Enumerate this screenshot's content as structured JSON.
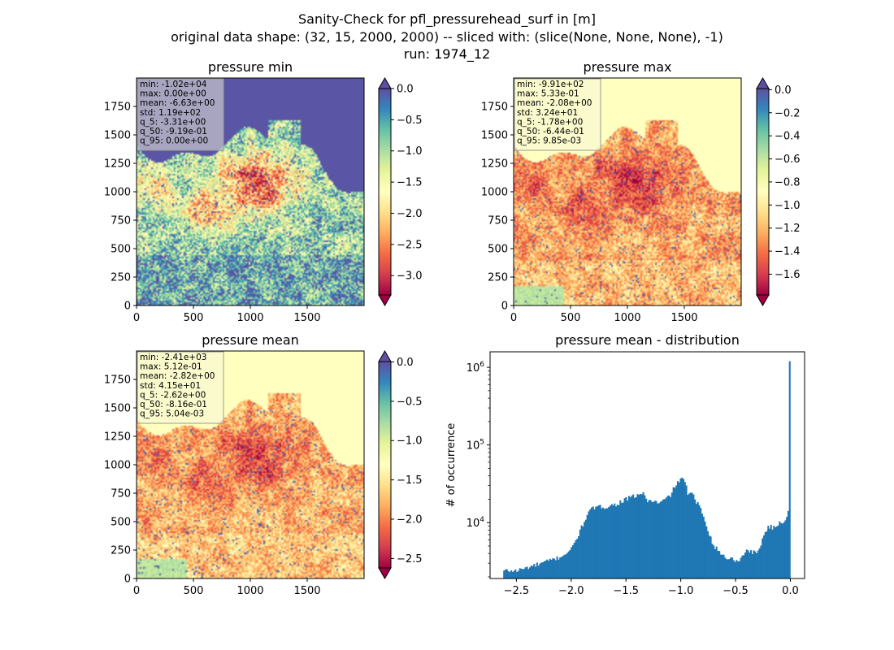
{
  "figure": {
    "title_lines": [
      "Sanity-Check for pfl_pressurehead_surf in [m]",
      "original data shape: (32, 15, 2000, 2000) -- sliced with: (slice(None, None, None), -1)",
      "run: 1974_12"
    ]
  },
  "colors": {
    "spectral": [
      "#9e0142",
      "#d53e4f",
      "#f46d43",
      "#fdae61",
      "#fee08b",
      "#ffffbf",
      "#e6f598",
      "#abdda4",
      "#66c2a5",
      "#3288bd",
      "#5e4fa2"
    ],
    "histogram_bar": "#1f77b4"
  },
  "chart_data": [
    {
      "type": "heatmap",
      "title": "pressure min",
      "xticks": [
        0,
        500,
        1000,
        1500
      ],
      "yticks": [
        0,
        250,
        500,
        750,
        1000,
        1250,
        1500,
        1750
      ],
      "xlim": [
        0,
        2000
      ],
      "ylim": [
        0,
        2000
      ],
      "colorbar": {
        "min": -3.31,
        "max": 0.0,
        "ticks": [
          0.0,
          -0.5,
          -1.0,
          -1.5,
          -2.0,
          -2.5,
          -3.0
        ],
        "tick_labels": [
          "0.0",
          "−0.5",
          "−1.0",
          "−1.5",
          "−2.0",
          "−2.5",
          "−3.0"
        ],
        "extend": "both"
      },
      "stats": [
        "min: -1.02e+04",
        "max: 0.00e+00",
        "mean: -6.63e+00",
        "std: 1.19e+02",
        "q_5: -3.31e+00",
        "q_50: -9.19e-01",
        "q_95: 0.00e+00"
      ]
    },
    {
      "type": "heatmap",
      "title": "pressure max",
      "xticks": [
        0,
        500,
        1000,
        1500
      ],
      "yticks": [
        0,
        250,
        500,
        750,
        1000,
        1250,
        1500,
        1750
      ],
      "xlim": [
        0,
        2000
      ],
      "ylim": [
        0,
        2000
      ],
      "colorbar": {
        "min": -1.78,
        "max": 0.00985,
        "ticks": [
          0.0,
          -0.2,
          -0.4,
          -0.6,
          -0.8,
          -1.0,
          -1.2,
          -1.4,
          -1.6
        ],
        "tick_labels": [
          "0.0",
          "−0.2",
          "−0.4",
          "−0.6",
          "−0.8",
          "−1.0",
          "−1.2",
          "−1.4",
          "−1.6"
        ],
        "extend": "both"
      },
      "stats": [
        "min: -9.91e+02",
        "max: 5.33e-01",
        "mean: -2.08e+00",
        "std: 3.24e+01",
        "q_5: -1.78e+00",
        "q_50: -6.44e-01",
        "q_95: 9.85e-03"
      ]
    },
    {
      "type": "heatmap",
      "title": "pressure mean",
      "xticks": [
        0,
        500,
        1000,
        1500
      ],
      "yticks": [
        0,
        250,
        500,
        750,
        1000,
        1250,
        1500,
        1750
      ],
      "xlim": [
        0,
        2000
      ],
      "ylim": [
        0,
        2000
      ],
      "colorbar": {
        "min": -2.62,
        "max": 0.00504,
        "ticks": [
          0.0,
          -0.5,
          -1.0,
          -1.5,
          -2.0,
          -2.5
        ],
        "tick_labels": [
          "0.0",
          "−0.5",
          "−1.0",
          "−1.5",
          "−2.0",
          "−2.5"
        ],
        "extend": "both"
      },
      "stats": [
        "min: -2.41e+03",
        "max: 5.12e-01",
        "mean: -2.82e+00",
        "std: 4.15e+01",
        "q_5: -2.62e+00",
        "q_50: -8.16e-01",
        "q_95: 5.04e-03"
      ]
    },
    {
      "type": "bar",
      "title": "pressure mean - distribution",
      "ylabel": "# of occurrence",
      "xlabel": "",
      "yscale": "log",
      "xlim": [
        -2.74,
        0.13
      ],
      "ylim_log10": [
        3.28,
        6.2
      ],
      "xticks": [
        -2.5,
        -2.0,
        -1.5,
        -1.0,
        -0.5,
        0.0
      ],
      "xtick_labels": [
        "−2.5",
        "−2.0",
        "−1.5",
        "−1.0",
        "−0.5",
        "0.0"
      ],
      "ytick_labels": [
        {
          "exp": 4,
          "text_base": "10",
          "text_exp": "4"
        },
        {
          "exp": 5,
          "text_base": "10",
          "text_exp": "5"
        },
        {
          "exp": 6,
          "text_base": "10",
          "text_exp": "6"
        }
      ],
      "bin_range": [
        -2.62,
        0.0
      ],
      "bin_count": 200,
      "profile_x": [
        -2.62,
        -2.5,
        -2.3,
        -2.1,
        -2.0,
        -1.95,
        -1.9,
        -1.85,
        -1.8,
        -1.7,
        -1.6,
        -1.5,
        -1.4,
        -1.35,
        -1.3,
        -1.25,
        -1.2,
        -1.1,
        -1.05,
        -1.0,
        -0.98,
        -0.95,
        -0.93,
        -0.9,
        -0.87,
        -0.85,
        -0.8,
        -0.75,
        -0.7,
        -0.6,
        -0.5,
        -0.45,
        -0.4,
        -0.35,
        -0.3,
        -0.25,
        -0.2,
        -0.15,
        -0.1,
        -0.05,
        -0.02,
        -0.01
      ],
      "profile_y": [
        2400,
        2400,
        2900,
        3600,
        4500,
        6200,
        9000,
        13000,
        15500,
        16000,
        17000,
        20000,
        22500,
        24000,
        19000,
        19000,
        17500,
        22000,
        30000,
        37000,
        35000,
        30000,
        22000,
        25000,
        19000,
        18000,
        13000,
        8000,
        5000,
        3600,
        3300,
        3400,
        4500,
        4200,
        4000,
        6500,
        9000,
        8500,
        10000,
        10500,
        14000,
        14000
      ],
      "spike": {
        "x": 0.0,
        "y": 1200000
      }
    }
  ]
}
